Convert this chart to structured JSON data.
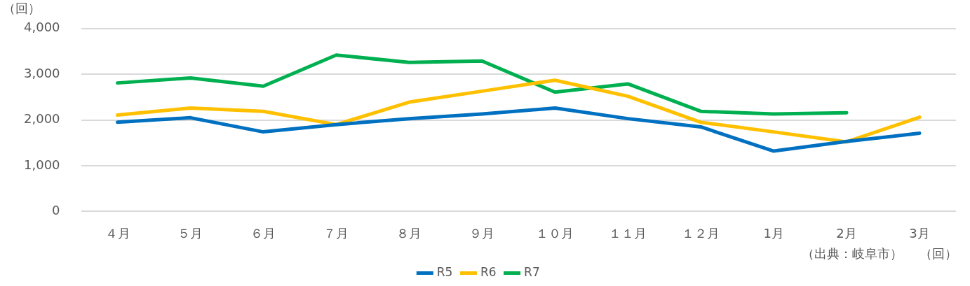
{
  "chart_data": {
    "type": "line",
    "ylabel": "（回）",
    "categories": [
      "４月",
      "５月",
      "６月",
      "７月",
      "８月",
      "９月",
      "１０月",
      "１１月",
      "１２月",
      "1月",
      "2月",
      "3月"
    ],
    "series": [
      {
        "name": "R5",
        "color": "#0070c0",
        "values": [
          1950,
          2050,
          1740,
          1900,
          2030,
          2130,
          2260,
          2030,
          1850,
          1320,
          1530,
          1710
        ]
      },
      {
        "name": "R6",
        "color": "#ffc000",
        "values": [
          2110,
          2260,
          2190,
          1900,
          2390,
          2630,
          2870,
          2520,
          1950,
          1740,
          1520,
          2060
        ]
      },
      {
        "name": "R7",
        "color": "#00b050",
        "values": [
          2810,
          2920,
          2740,
          3420,
          3260,
          3290,
          2610,
          2790,
          2190,
          2130,
          2160,
          null
        ]
      }
    ],
    "ylim": [
      0,
      4000
    ],
    "yticks": [
      0,
      {
        "value": 1000,
        "label": "1,000"
      },
      {
        "value": 2000,
        "label": "2,000"
      },
      {
        "value": 3000,
        "label": "3,000"
      },
      {
        "value": 4000,
        "label": "4,000"
      }
    ],
    "grid": "y",
    "legend": "bottom",
    "marker": "none",
    "line_style": "solid",
    "annotations": [
      "（出典：岐阜市）",
      "（回）"
    ]
  }
}
